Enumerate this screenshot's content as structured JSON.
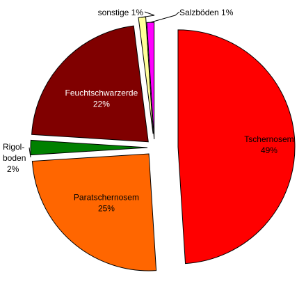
{
  "chart_data": {
    "type": "pie",
    "title": "",
    "slices": [
      {
        "label": "Tschernosem",
        "value": 49,
        "display": "49%",
        "color": "#ff0000",
        "text_color": "#000000",
        "placement": "inside"
      },
      {
        "label": "Paratschernosem",
        "value": 25,
        "display": "25%",
        "color": "#ff6600",
        "text_color": "#000000",
        "placement": "inside"
      },
      {
        "label": "Rigol-boden",
        "label_lines": [
          "Rigol-",
          "boden"
        ],
        "value": 2,
        "display": "2%",
        "color": "#008000",
        "text_color": "#000000",
        "placement": "outside-left"
      },
      {
        "label": "Feuchtschwarzerde",
        "value": 22,
        "display": "22%",
        "color": "#800000",
        "text_color": "#ffffff",
        "placement": "inside"
      },
      {
        "label": "sonstige",
        "value": 1,
        "display": "1%",
        "color": "#ffff99",
        "text_color": "#000000",
        "placement": "outside-top-left"
      },
      {
        "label": "Salzböden",
        "value": 1,
        "display": "1%",
        "color": "#ff00ff",
        "text_color": "#000000",
        "placement": "outside-top-right"
      }
    ],
    "start": "12 o'clock",
    "direction": "clockwise",
    "exploded": true,
    "legend": "none"
  }
}
